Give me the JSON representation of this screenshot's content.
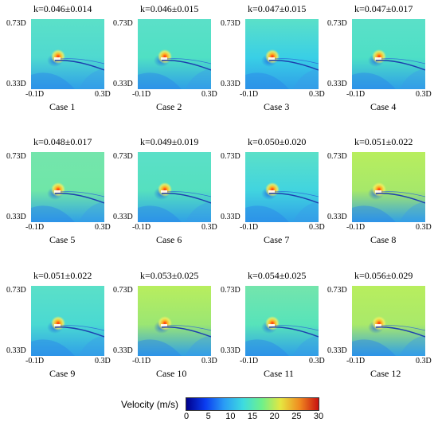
{
  "axis": {
    "y_top": "0.73D",
    "y_bottom": "0.33D",
    "x_left": "-0.1D",
    "x_right": "0.3D"
  },
  "cases": [
    {
      "case": "Case 1",
      "k": "k=0.046±0.014",
      "bg": "#4fd9d0",
      "flow": "low"
    },
    {
      "case": "Case 2",
      "k": "k=0.046±0.015",
      "bg": "#4fe0c4",
      "flow": "low"
    },
    {
      "case": "Case 3",
      "k": "k=0.047±0.015",
      "bg": "#39cfe6",
      "flow": "low"
    },
    {
      "case": "Case 4",
      "k": "k=0.047±0.017",
      "bg": "#4ddfc6",
      "flow": "low"
    },
    {
      "case": "Case 5",
      "k": "k=0.048±0.017",
      "bg": "#6fe6a8",
      "flow": "mid"
    },
    {
      "case": "Case 6",
      "k": "k=0.049±0.019",
      "bg": "#55e0bf",
      "flow": "low"
    },
    {
      "case": "Case 7",
      "k": "k=0.050±0.020",
      "bg": "#41d4df",
      "flow": "low"
    },
    {
      "case": "Case 8",
      "k": "k=0.051±0.022",
      "bg": "#a6e86a",
      "flow": "high"
    },
    {
      "case": "Case 9",
      "k": "k=0.051±0.022",
      "bg": "#4ad9d2",
      "flow": "low"
    },
    {
      "case": "Case 10",
      "k": "k=0.053±0.025",
      "bg": "#9be673",
      "flow": "high"
    },
    {
      "case": "Case 11",
      "k": "k=0.054±0.025",
      "bg": "#57e3ba",
      "flow": "mid"
    },
    {
      "case": "Case 12",
      "k": "k=0.056±0.029",
      "bg": "#a9e96a",
      "flow": "high"
    }
  ],
  "colorbar": {
    "title": "Velocity (m/s)",
    "ticks": [
      "0",
      "5",
      "10",
      "15",
      "20",
      "25",
      "30"
    ],
    "colors": [
      "#00008c",
      "#0a3cf0",
      "#2a9cf5",
      "#3ddbe0",
      "#6ef08a",
      "#e6e640",
      "#f08a20",
      "#c81010"
    ]
  }
}
